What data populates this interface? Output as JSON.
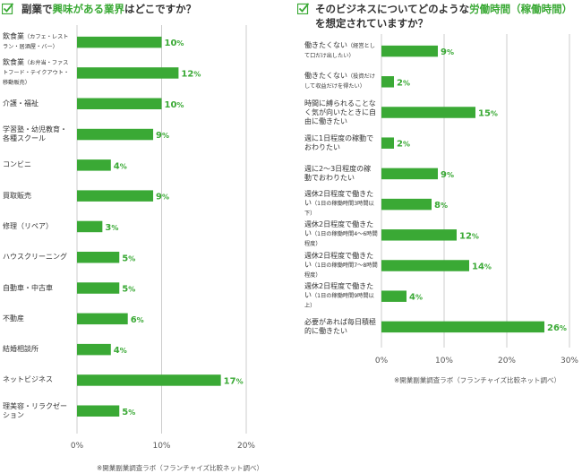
{
  "colors": {
    "bar": "#3aa935",
    "accent": "#3aa935",
    "grid": "#cccccc",
    "check": "#3aa935"
  },
  "left": {
    "title_pre": "副業で",
    "title_hl": "興味がある業界",
    "title_post": "はどこですか？",
    "source": "※開業副業調査ラボ（フランチャイズ比較ネット調べ）"
  },
  "right": {
    "title_line1_pre": "そのビジネスについてどのような",
    "title_line1_hl": "労働時間（稼働時間）",
    "title_line2": "を想定されていますか？",
    "source": "※開業副業調査ラボ（フランチャイズ比較ネット調べ）"
  },
  "chart_data": [
    {
      "type": "bar",
      "orientation": "horizontal",
      "title": "副業で興味がある業界はどこですか？",
      "unit": "%",
      "xlim": [
        0,
        20
      ],
      "ticks": [
        0,
        10,
        20
      ],
      "tick_labels": [
        "0%",
        "10%",
        "20%"
      ],
      "grid": true,
      "categories": [
        {
          "label": "飲食業",
          "sub": "（カフェ・レストラン・居酒屋・バー）"
        },
        {
          "label": "飲食業",
          "sub": "（お弁当・ファストフード・テイクアウト・移動販売）"
        },
        {
          "label": "介護・福祉",
          "sub": ""
        },
        {
          "label": "学習塾・幼児教育・各種スクール",
          "sub": ""
        },
        {
          "label": "コンビニ",
          "sub": ""
        },
        {
          "label": "買取販売",
          "sub": ""
        },
        {
          "label": "修理（リペア）",
          "sub": ""
        },
        {
          "label": "ハウスクリーニング",
          "sub": ""
        },
        {
          "label": "自動車・中古車",
          "sub": ""
        },
        {
          "label": "不動産",
          "sub": ""
        },
        {
          "label": "結婚相談所",
          "sub": ""
        },
        {
          "label": "ネットビジネス",
          "sub": ""
        },
        {
          "label": "理美容・リラクゼーション",
          "sub": ""
        }
      ],
      "values": [
        10,
        12,
        10,
        9,
        4,
        9,
        3,
        5,
        5,
        6,
        4,
        17,
        5
      ]
    },
    {
      "type": "bar",
      "orientation": "horizontal",
      "title": "そのビジネスについてどのような労働時間（稼働時間）を想定されていますか？",
      "unit": "%",
      "xlim": [
        0,
        30
      ],
      "ticks": [
        0,
        10,
        20,
        30
      ],
      "tick_labels": [
        "0%",
        "10%",
        "20%",
        "30%"
      ],
      "grid": true,
      "categories": [
        {
          "label": "働きたくない",
          "sub": "（経営として口だけ出したい）"
        },
        {
          "label": "働きたくない",
          "sub": "（投資だけして収益だけを得たい）"
        },
        {
          "label": "時間に縛られることなく気が向いたときに自由に働きたい",
          "sub": ""
        },
        {
          "label": "週に1日程度の稼動でおわりたい",
          "sub": ""
        },
        {
          "label": "週に2〜3日程度の稼動でおわりたい",
          "sub": ""
        },
        {
          "label": "週休2日程度で働きたい",
          "sub": "（1日の稼働時間3時間以下）"
        },
        {
          "label": "週休2日程度で働きたい",
          "sub": "（1日の稼働時間4〜6時間程度）"
        },
        {
          "label": "週休2日程度で働きたい",
          "sub": "（1日の稼働時間7〜8時間程度）"
        },
        {
          "label": "週休2日程度で働きたい",
          "sub": "（1日の稼働時間9時間以上）"
        },
        {
          "label": "必要があれば毎日積極的に働きたい",
          "sub": ""
        }
      ],
      "values": [
        9,
        2,
        15,
        2,
        9,
        8,
        12,
        14,
        4,
        26
      ]
    }
  ]
}
